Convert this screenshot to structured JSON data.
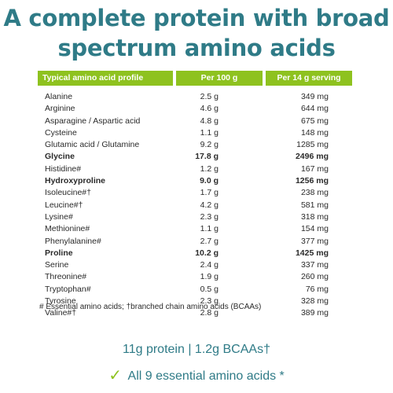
{
  "title": {
    "line1": "A complete protein with broad",
    "line2": "spectrum amino acids"
  },
  "table": {
    "headers": [
      "Typical amino acid profile",
      "Per 100 g",
      "Per 14 g serving"
    ],
    "rows": [
      {
        "name": "Alanine",
        "per100": "2.5 g",
        "serving": "349 mg",
        "bold": false
      },
      {
        "name": "Arginine",
        "per100": "4.6 g",
        "serving": "644 mg",
        "bold": false
      },
      {
        "name": "Asparagine / Aspartic acid",
        "per100": "4.8 g",
        "serving": "675 mg",
        "bold": false
      },
      {
        "name": "Cysteine",
        "per100": "1.1 g",
        "serving": "148 mg",
        "bold": false
      },
      {
        "name": "Glutamic acid / Glutamine",
        "per100": "9.2 g",
        "serving": "1285 mg",
        "bold": false
      },
      {
        "name": "Glycine",
        "per100": "17.8 g",
        "serving": "2496 mg",
        "bold": true
      },
      {
        "name": "Histidine#",
        "per100": "1.2 g",
        "serving": "167 mg",
        "bold": false
      },
      {
        "name": "Hydroxyproline",
        "per100": "9.0 g",
        "serving": "1256 mg",
        "bold": true
      },
      {
        "name": "Isoleucine#†",
        "per100": "1.7 g",
        "serving": "238 mg",
        "bold": false
      },
      {
        "name": "Leucine#†",
        "per100": "4.2 g",
        "serving": "581 mg",
        "bold": false
      },
      {
        "name": "Lysine#",
        "per100": "2.3 g",
        "serving": "318 mg",
        "bold": false
      },
      {
        "name": "Methionine#",
        "per100": "1.1 g",
        "serving": "154 mg",
        "bold": false
      },
      {
        "name": "Phenylalanine#",
        "per100": "2.7 g",
        "serving": "377 mg",
        "bold": false
      },
      {
        "name": "Proline",
        "per100": "10.2 g",
        "serving": "1425 mg",
        "bold": true
      },
      {
        "name": "Serine",
        "per100": "2.4 g",
        "serving": "337 mg",
        "bold": false
      },
      {
        "name": "Threonine#",
        "per100": "1.9 g",
        "serving": "260 mg",
        "bold": false
      },
      {
        "name": "Tryptophan#",
        "per100": "0.5 g",
        "serving": "76 mg",
        "bold": false
      },
      {
        "name": "Tyrosine",
        "per100": "2.3 g",
        "serving": "328 mg",
        "bold": false
      },
      {
        "name": "Valine#†",
        "per100": "2.8 g",
        "serving": "389 mg",
        "bold": false
      }
    ]
  },
  "footnote": "# Essential amino acids; †branched chain amino acids (BCAAs)",
  "summary": {
    "line1": "11g protein | 1.2g BCAAs†",
    "line2": "All 9 essential amino acids *"
  },
  "colors": {
    "title": "#2f7b87",
    "header_bg": "#8ec21f",
    "check": "#8ec21f"
  },
  "icons": {
    "check": "check-icon"
  }
}
